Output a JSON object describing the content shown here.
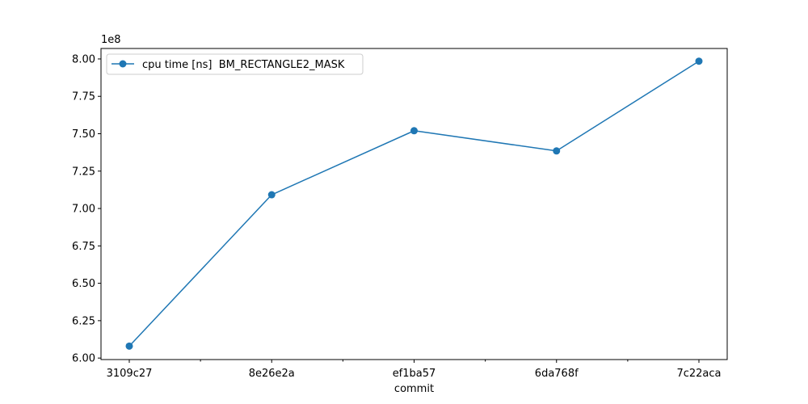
{
  "chart_data": {
    "type": "line",
    "categories": [
      "3109c27",
      "8e26e2a",
      "ef1ba57",
      "6da768f",
      "7c22aca"
    ],
    "series": [
      {
        "name": "cpu time [ns]  BM_RECTANGLE2_MASK",
        "values": [
          608000000,
          709200000,
          752000000,
          738500000,
          798500000
        ],
        "color": "#1f77b4",
        "marker": "circle"
      }
    ],
    "title": "",
    "xlabel": "commit",
    "ylabel": "",
    "ylim": [
      599000000,
      807000000
    ],
    "y_ticks": [
      600000000,
      625000000,
      650000000,
      675000000,
      700000000,
      725000000,
      750000000,
      775000000,
      800000000
    ],
    "y_tick_labels": [
      "6.00",
      "6.25",
      "6.50",
      "6.75",
      "7.00",
      "7.25",
      "7.50",
      "7.75",
      "8.00"
    ],
    "y_offset_label": "1e8",
    "minor_x_ticks": true,
    "grid": false,
    "legend_position": "upper left"
  }
}
